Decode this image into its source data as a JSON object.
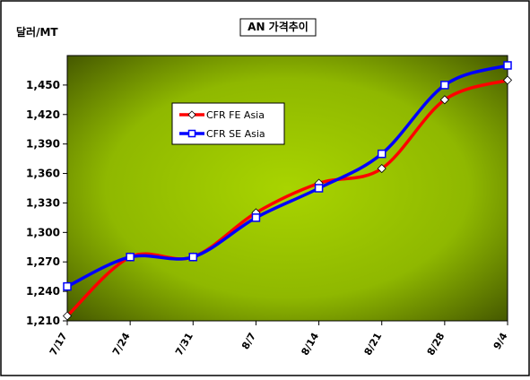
{
  "chart_data": {
    "type": "line",
    "title": "AN 가격추이",
    "ylabel": "달러/MT",
    "xlabel": "",
    "categories": [
      "7/17",
      "7/24",
      "7/31",
      "8/7",
      "8/14",
      "8/21",
      "8/28",
      "9/4"
    ],
    "ylim": [
      1210,
      1480
    ],
    "yticks": [
      1210,
      1240,
      1270,
      1300,
      1330,
      1360,
      1390,
      1420,
      1450
    ],
    "ytick_labels": [
      "1,210",
      "1,240",
      "1,270",
      "1,300",
      "1,330",
      "1,360",
      "1,390",
      "1,420",
      "1,450"
    ],
    "grid": false,
    "legend_position": "upper-left",
    "series": [
      {
        "name": "CFR FE Asia",
        "color": "#ff0000",
        "marker": "diamond",
        "values": [
          1215,
          1275,
          1275,
          1320,
          1350,
          1365,
          1435,
          1455
        ]
      },
      {
        "name": "CFR SE Asia",
        "color": "#0000ff",
        "marker": "square",
        "values": [
          1245,
          1275,
          1275,
          1315,
          1345,
          1380,
          1450,
          1470
        ]
      }
    ],
    "colors": {
      "plot_light": "#a8d400",
      "plot_dark": "#3a4a00",
      "frame": "#000000"
    }
  }
}
